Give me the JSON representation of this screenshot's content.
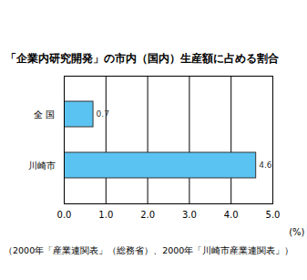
{
  "chart_data": {
    "type": "bar",
    "title": "「企業内研究開発」の市内（国内）生産額に占める割合",
    "caption": "（2000年「産業連関表」（総務省）、2000年「川崎市産業連関表」）",
    "orientation": "horizontal",
    "categories": [
      "全 国",
      "川崎市"
    ],
    "values": [
      0.7,
      4.6
    ],
    "color": "#5bc3f2",
    "data_labels": true,
    "grid": true,
    "x_label": "(%)",
    "xlim": [
      0,
      5
    ],
    "xticks": [
      {
        "value": 0,
        "label": "0.0"
      },
      {
        "value": 1,
        "label": "1.0"
      },
      {
        "value": 2,
        "label": "2.0"
      },
      {
        "value": 3,
        "label": "3.0"
      },
      {
        "value": 4,
        "label": "4.0"
      },
      {
        "value": 5,
        "label": "5.0"
      }
    ]
  }
}
